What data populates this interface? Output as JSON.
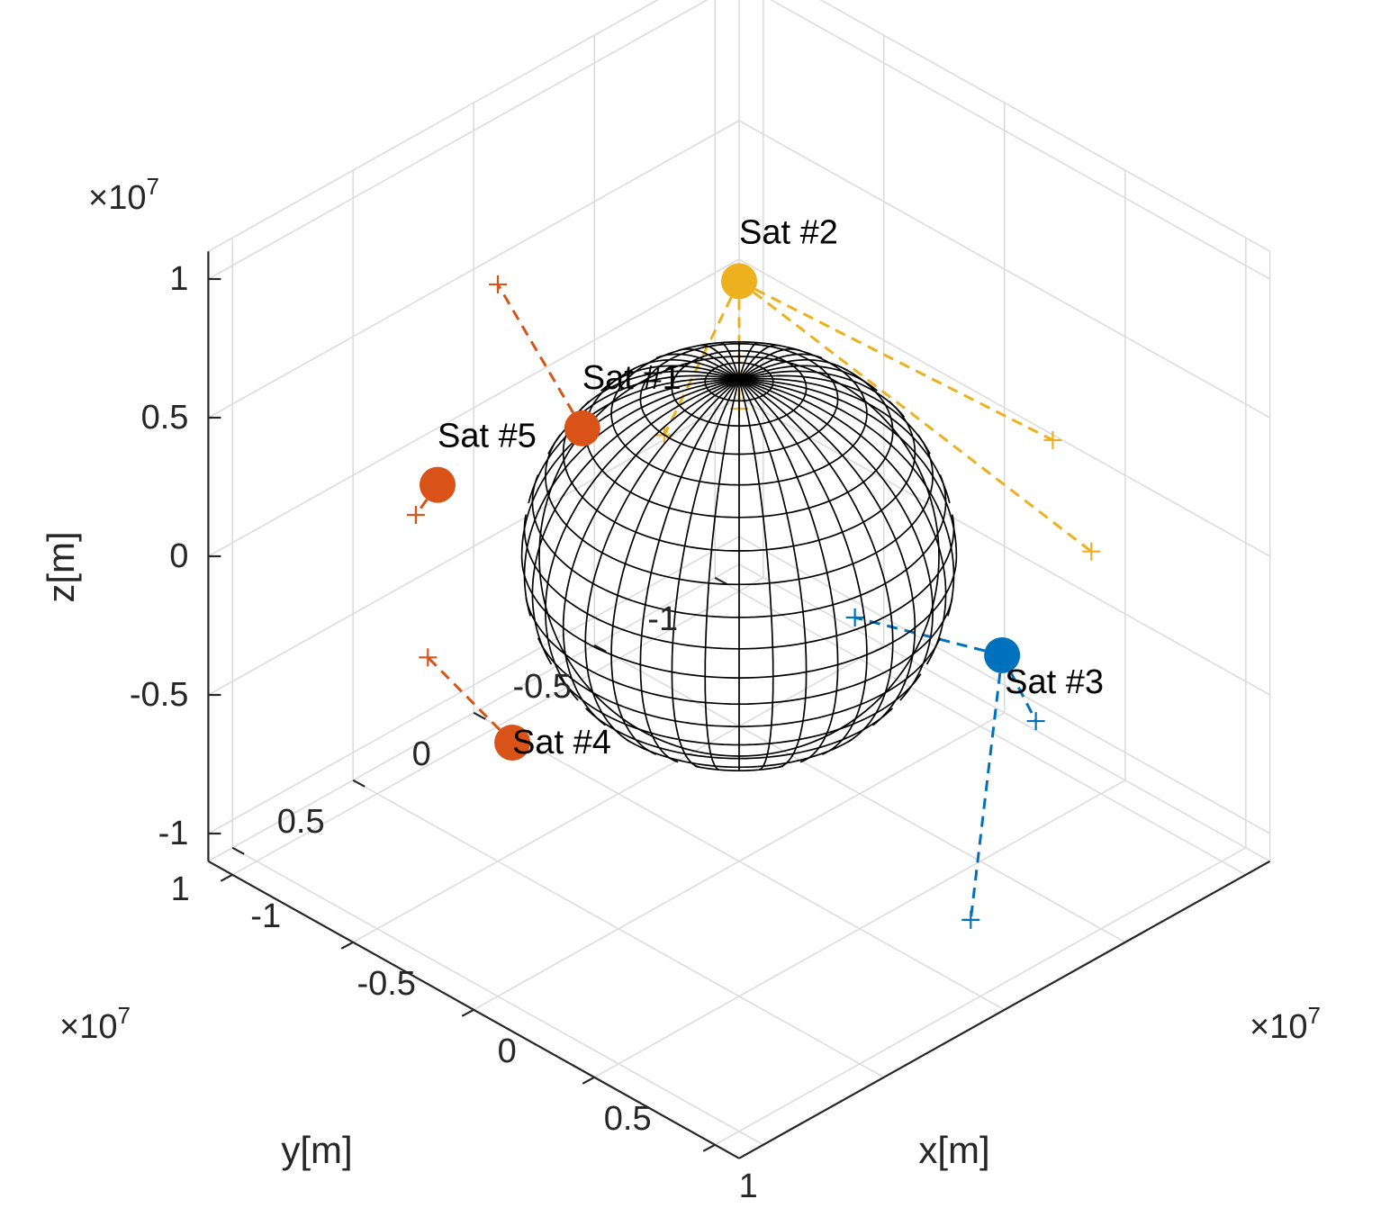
{
  "chart_data": {
    "type": "scatter3d",
    "title": "",
    "xlabel": "x[m]",
    "ylabel": "y[m]",
    "zlabel": "z[m]",
    "axis_multiplier": "10^7",
    "axis_multiplier_display": {
      "base": "×10",
      "exponent": "7"
    },
    "xlim": [
      -1.1,
      1.1
    ],
    "ylim": [
      -1.1,
      1.1
    ],
    "zlim": [
      -1.1,
      1.1
    ],
    "xticks": [
      -1,
      -0.5,
      0,
      0.5,
      1
    ],
    "yticks": [
      -1,
      -0.5,
      0,
      0.5,
      1
    ],
    "zticks": [
      -1,
      -0.5,
      0,
      0.5,
      1
    ],
    "xtick_labels": [
      "-1",
      "-0.5",
      "0",
      "0.5",
      "1"
    ],
    "ytick_labels": [
      "-1",
      "-0.5",
      "0",
      "0.5",
      "1"
    ],
    "ztick_labels": [
      "-1",
      "-0.5",
      "0",
      "0.5",
      "1"
    ],
    "grid": true,
    "earth": {
      "radius": 0.637,
      "center": [
        0,
        0,
        0
      ],
      "color": "#000000",
      "style": "wireframe sphere"
    },
    "satellites": [
      {
        "label": "Sat #1",
        "color": "#D95319",
        "position": [
          -0.08,
          0.57,
          0.7
        ],
        "label_offset": "upper-right",
        "links": [
          [
            -0.47,
            0.53,
            1.01
          ]
        ]
      },
      {
        "label": "Sat #2",
        "color": "#EDB120",
        "position": [
          0.09,
          0.09,
          1.08
        ],
        "label_offset": "above",
        "links": [
          [
            -0.08,
            0.23,
            0.51
          ],
          [
            0.09,
            0.09,
            0.62
          ],
          [
            1.0,
            -0.3,
            0.76
          ],
          [
            1.01,
            -0.45,
            0.29
          ]
        ]
      },
      {
        "label": "Sat #3",
        "color": "#0072BD",
        "position": [
          0.47,
          -0.62,
          -0.43
        ],
        "label_offset": "lower-right",
        "links": [
          [
            0.21,
            -0.27,
            -0.25
          ],
          [
            0.64,
            -0.59,
            -0.57
          ],
          [
            0.82,
            -0.14,
            -0.98
          ]
        ]
      },
      {
        "label": "Sat #4",
        "color": "#D95319",
        "position": [
          -0.16,
          0.78,
          -0.37
        ],
        "label_offset": "right",
        "links": [
          [
            -0.16,
            0.78,
            -0.37
          ],
          [
            -0.63,
            0.66,
            -0.35
          ]
        ]
      },
      {
        "label": "Sat #5",
        "color": "#D95319",
        "position": [
          -0.14,
          1.11,
          0.73
        ],
        "label_offset": "above",
        "links": [
          [
            -0.31,
            1.03,
            0.5
          ]
        ]
      }
    ]
  }
}
